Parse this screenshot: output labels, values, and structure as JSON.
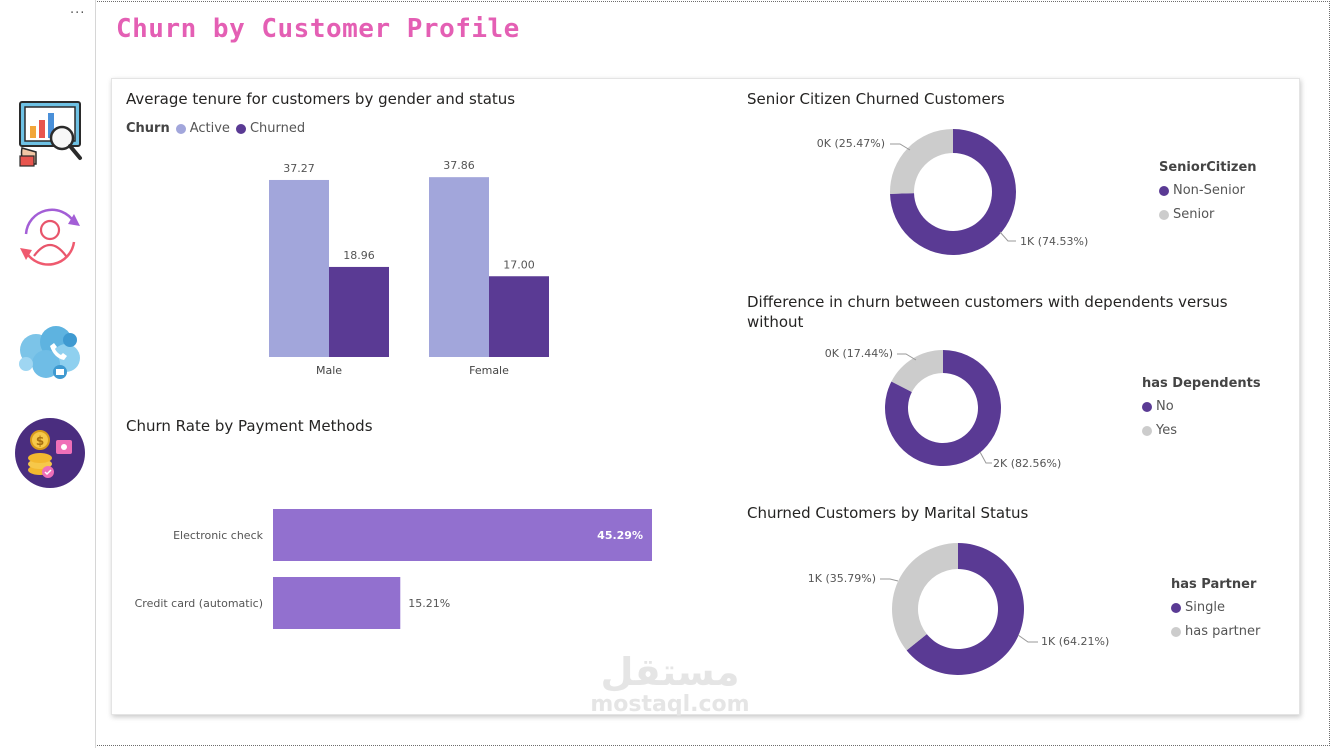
{
  "page": {
    "title": "Churn by Customer Profile",
    "more_options": "···"
  },
  "nav": {
    "items": [
      {
        "name": "dashboard-overview",
        "label": "Overview"
      },
      {
        "name": "customer-churn",
        "label": "Churn"
      },
      {
        "name": "services",
        "label": "Services"
      },
      {
        "name": "payments",
        "label": "Payments"
      }
    ]
  },
  "colors": {
    "active": "#a2a6db",
    "churned": "#5a3a94",
    "bar_payment": "#9270cf",
    "donut_main": "#5a3a94",
    "donut_other": "#cccccc",
    "title_pink": "#e45fb4"
  },
  "tenure_chart": {
    "title": "Average tenure for customers by gender and status",
    "legend_title": "Churn",
    "legend": [
      "Active",
      "Churned"
    ]
  },
  "payment_chart": {
    "title": "Churn Rate by Payment Methods"
  },
  "senior_chart": {
    "title": "Senior Citizen Churned Customers",
    "legend_title": "SeniorCitizen",
    "legend": [
      "Non-Senior",
      "Senior"
    ],
    "label_main": "1K (74.53%)",
    "label_other": "0K (25.47%)"
  },
  "dependents_chart": {
    "title": "Difference in churn between customers with dependents versus without",
    "legend_title": "has Dependents",
    "legend": [
      "No",
      "Yes"
    ],
    "label_main": "2K (82.56%)",
    "label_other": "0K (17.44%)"
  },
  "marital_chart": {
    "title": "Churned Customers by Marital Status",
    "legend_title": "has Partner",
    "legend": [
      "Single",
      "has partner"
    ],
    "label_main": "1K (64.21%)",
    "label_other": "1K (35.79%)"
  },
  "chart_data": [
    {
      "type": "bar",
      "title": "Average tenure for customers by gender and status",
      "categories": [
        "Male",
        "Female"
      ],
      "series": [
        {
          "name": "Active",
          "values": [
            37.27,
            37.86
          ],
          "labels": [
            "37.27",
            "37.86"
          ]
        },
        {
          "name": "Churned",
          "values": [
            18.96,
            17.0
          ],
          "labels": [
            "18.96",
            "17.00"
          ]
        }
      ],
      "ylim": [
        0,
        40
      ]
    },
    {
      "type": "bar",
      "orientation": "horizontal",
      "title": "Churn Rate by Payment Methods",
      "categories": [
        "Electronic check",
        "Credit card (automatic)"
      ],
      "values": [
        45.29,
        15.21
      ],
      "labels": [
        "45.29%",
        "15.21%"
      ]
    },
    {
      "type": "pie",
      "title": "Senior Citizen Churned Customers",
      "categories": [
        "Non-Senior",
        "Senior"
      ],
      "values": [
        74.53,
        25.47
      ]
    },
    {
      "type": "pie",
      "title": "Difference in churn between customers with dependents versus without",
      "categories": [
        "No",
        "Yes"
      ],
      "values": [
        82.56,
        17.44
      ]
    },
    {
      "type": "pie",
      "title": "Churned Customers by Marital Status",
      "categories": [
        "Single",
        "has partner"
      ],
      "values": [
        64.21,
        35.79
      ]
    }
  ],
  "watermark": {
    "arabic": "مستقل",
    "latin": "mostaql.com"
  }
}
